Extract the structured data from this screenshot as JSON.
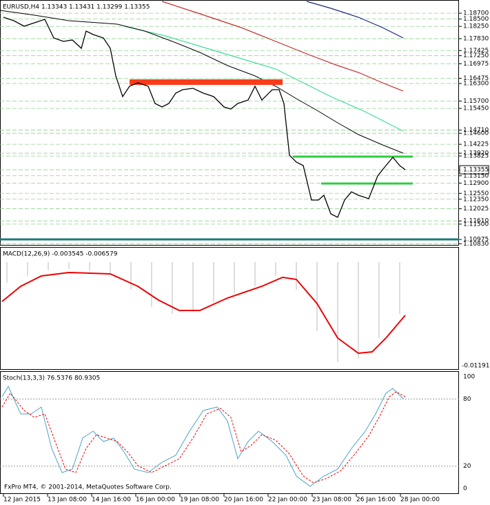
{
  "header": {
    "title": "EURUSD,H4  1.13343 1.13431 1.13299 1.13355"
  },
  "price_axis": {
    "ylim": [
      1.1079,
      1.1915
    ],
    "ticks": [
      {
        "value": 1.187,
        "label": "1.18700"
      },
      {
        "value": 1.185,
        "label": "1.18500"
      },
      {
        "value": 1.1825,
        "label": "1.18250"
      },
      {
        "value": 1.1783,
        "label": "1.17830"
      },
      {
        "value": 1.17425,
        "label": "1.17425"
      },
      {
        "value": 1.1725,
        "label": "1.17250"
      },
      {
        "value": 1.16975,
        "label": "1.16975"
      },
      {
        "value": 1.16475,
        "label": "1.16475"
      },
      {
        "value": 1.163,
        "label": "1.16300"
      },
      {
        "value": 1.157,
        "label": "1.15700"
      },
      {
        "value": 1.1545,
        "label": "1.15450"
      },
      {
        "value": 1.1471,
        "label": "1.14710"
      },
      {
        "value": 1.146,
        "label": "1.14600"
      },
      {
        "value": 1.14225,
        "label": "1.14225"
      },
      {
        "value": 1.1392,
        "label": "1.13920"
      },
      {
        "value": 1.13825,
        "label": "1.13825"
      },
      {
        "value": 1.13355,
        "label": "1.13355"
      },
      {
        "value": 1.1315,
        "label": "1.13150"
      },
      {
        "value": 1.129,
        "label": "1.12900"
      },
      {
        "value": 1.1255,
        "label": "1.12550"
      },
      {
        "value": 1.1235,
        "label": "1.12350"
      },
      {
        "value": 1.12025,
        "label": "1.12025"
      },
      {
        "value": 1.1161,
        "label": "1.11610"
      },
      {
        "value": 1.115,
        "label": "1.11500"
      },
      {
        "value": 1.10975,
        "label": "1.10975"
      },
      {
        "value": 1.1083,
        "label": "1.10830"
      }
    ]
  },
  "time_axis": {
    "labels": [
      "12 Jan 2015",
      "13 Jan 08:00",
      "14 Jan 16:00",
      "16 Jan 00:00",
      "19 Jan 08:00",
      "20 Jan 16:00",
      "22 Jan 00:00",
      "23 Jan 08:00",
      "26 Jan 16:00",
      "28 Jan 00:00"
    ]
  },
  "macd": {
    "title": "MACD(12,26,9) -0.003545 -0.006579",
    "axis_label": "-0.011914"
  },
  "stoch": {
    "title": "Stoch(13,3,3) 76.5376 80.9305",
    "levels": [
      100,
      80,
      20,
      0
    ],
    "ylim": [
      0,
      100
    ]
  },
  "footer": "FxPro MT4, © 2001-2014, MetaQuotes Software Corp."
}
